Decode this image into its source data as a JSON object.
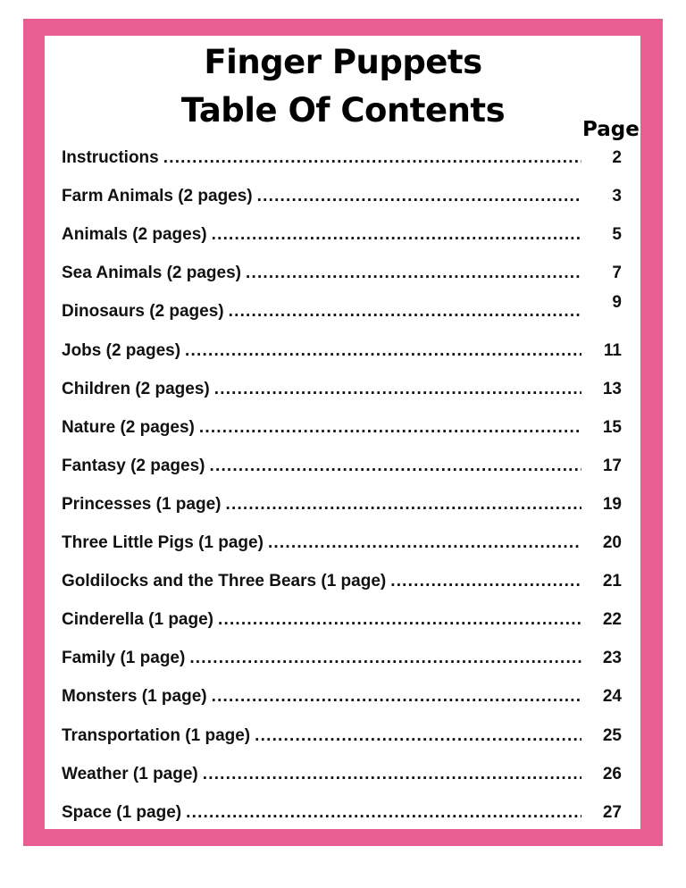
{
  "title": [
    "Finger Puppets",
    "Table Of Contents"
  ],
  "page_header": "Page",
  "colors": {
    "border": "#ea5f93"
  },
  "entries": [
    {
      "label": "Instructions",
      "page": "2"
    },
    {
      "label": "Farm Animals (2 pages)",
      "page": "3"
    },
    {
      "label": "Animals (2 pages)",
      "page": "5"
    },
    {
      "label": "Sea Animals (2 pages)",
      "page": "7"
    },
    {
      "label": "Dinosaurs (2 pages)",
      "page": "9"
    },
    {
      "label": "Jobs (2 pages)",
      "page": "11"
    },
    {
      "label": "Children (2 pages)",
      "page": "13"
    },
    {
      "label": "Nature (2 pages)",
      "page": "15"
    },
    {
      "label": "Fantasy (2 pages)",
      "page": "17"
    },
    {
      "label": "Princesses (1 page)",
      "page": "19"
    },
    {
      "label": "Three Little Pigs (1 page)",
      "page": "20"
    },
    {
      "label": "Goldilocks and the Three Bears (1 page)",
      "page": "21"
    },
    {
      "label": "Cinderella (1 page)",
      "page": "22"
    },
    {
      "label": "Family (1 page)",
      "page": "23"
    },
    {
      "label": "Monsters (1 page)",
      "page": "24"
    },
    {
      "label": "Transportation (1 page)",
      "page": "25"
    },
    {
      "label": "Weather (1 page)",
      "page": "26"
    },
    {
      "label": "Space (1 page)",
      "page": "27"
    }
  ]
}
